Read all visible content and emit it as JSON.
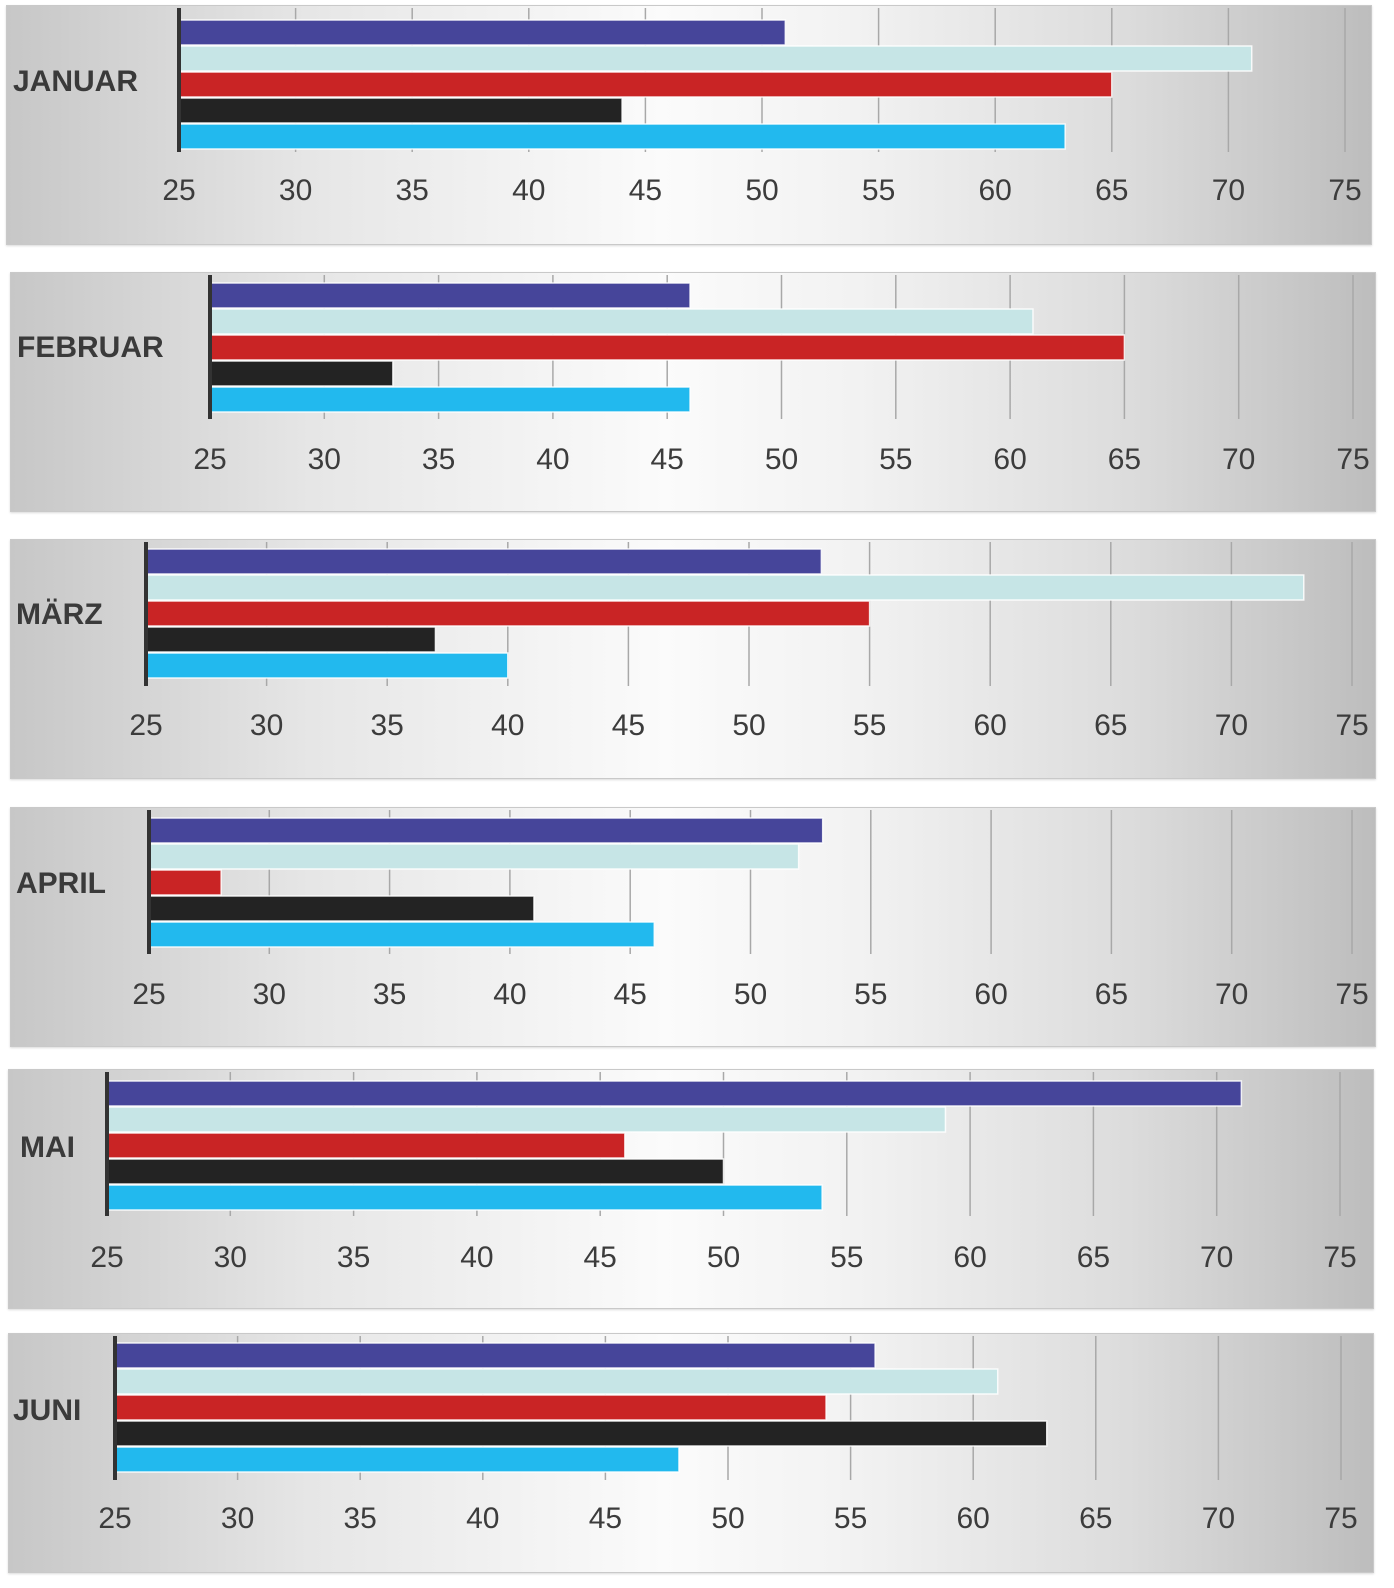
{
  "chart_data": {
    "type": "bar",
    "orientation": "horizontal",
    "xlim": [
      25,
      75
    ],
    "xticks": [
      25,
      30,
      35,
      40,
      45,
      50,
      55,
      60,
      65,
      70,
      75
    ],
    "grid": true,
    "legend": "none",
    "series_colors": [
      "#46459a",
      "#c6e5e6",
      "#c92425",
      "#232323",
      "#22b9ee"
    ],
    "panels": [
      {
        "category": "JANUAR",
        "values": [
          51,
          71,
          65,
          44,
          63
        ]
      },
      {
        "category": "FEBRUAR",
        "values": [
          46,
          61,
          65,
          33,
          46
        ]
      },
      {
        "category": "MÄRZ",
        "values": [
          53,
          73,
          55,
          37,
          40
        ]
      },
      {
        "category": "APRIL",
        "values": [
          53,
          52,
          28,
          41,
          46
        ]
      },
      {
        "category": "MAI",
        "values": [
          71,
          59,
          46,
          50,
          54
        ]
      },
      {
        "category": "JUNI",
        "values": [
          56,
          61,
          54,
          63,
          48
        ]
      }
    ]
  }
}
